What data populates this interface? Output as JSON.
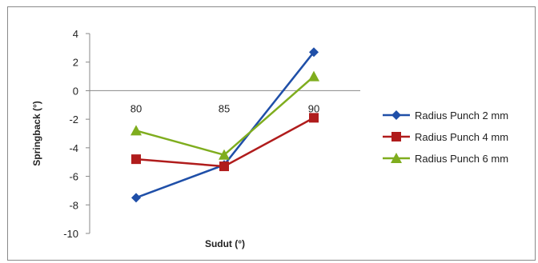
{
  "chart_data": {
    "type": "line",
    "categories": [
      "80",
      "85",
      "90"
    ],
    "series": [
      {
        "name": "Radius Punch 2 mm",
        "values": [
          -7.5,
          -5.2,
          2.7
        ],
        "color": "#1f4fa8",
        "marker": "diamond"
      },
      {
        "name": "Radius Punch 4 mm",
        "values": [
          -4.8,
          -5.3,
          -1.9
        ],
        "color": "#b01c1c",
        "marker": "square"
      },
      {
        "name": "Radius Punch 6 mm",
        "values": [
          -2.8,
          -4.5,
          1.0
        ],
        "color": "#7fad1e",
        "marker": "triangle"
      }
    ],
    "xlabel": "Sudut (°)",
    "ylabel": "Springback (°)",
    "ylim": [
      -10,
      4
    ],
    "yticks": [
      "4",
      "2",
      "0",
      "-2",
      "-4",
      "-6",
      "-8",
      "-10"
    ],
    "grid": false,
    "legend": "right"
  }
}
